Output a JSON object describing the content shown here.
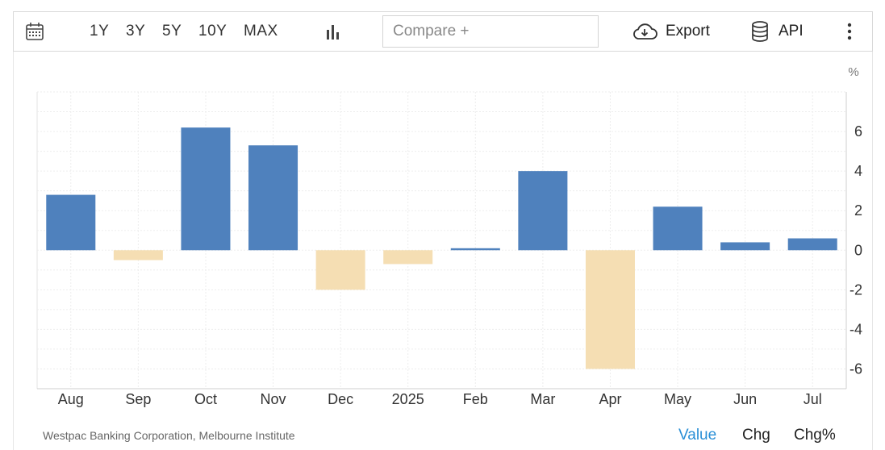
{
  "toolbar": {
    "ranges": [
      "1Y",
      "3Y",
      "5Y",
      "10Y",
      "MAX"
    ],
    "compare_placeholder": "Compare +",
    "export_label": "Export",
    "api_label": "API"
  },
  "footer": {
    "source": "Westpac Banking Corporation, Melbourne Institute",
    "tabs": [
      "Value",
      "Chg",
      "Chg%"
    ],
    "active_tab": "Value"
  },
  "colors": {
    "positive": "#4f81bd",
    "negative": "#f5deb3",
    "active_tab": "#2a8fd6"
  },
  "chart_data": {
    "type": "bar",
    "unit": "%",
    "categories": [
      "Aug",
      "Sep",
      "Oct",
      "Nov",
      "Dec",
      "2025",
      "Feb",
      "Mar",
      "Apr",
      "May",
      "Jun",
      "Jul"
    ],
    "values": [
      2.8,
      -0.5,
      6.2,
      5.3,
      -2.0,
      -0.7,
      0.1,
      4.0,
      -6.0,
      2.2,
      0.4,
      0.6
    ],
    "ylim": [
      -7,
      8
    ],
    "yticks": [
      6,
      4,
      2,
      0,
      -2,
      -4,
      -6
    ],
    "ytick_labels": [
      "6",
      "4",
      "2",
      "0",
      "-2",
      "-4",
      "-6"
    ],
    "grid": true,
    "y_axis_side": "right"
  }
}
